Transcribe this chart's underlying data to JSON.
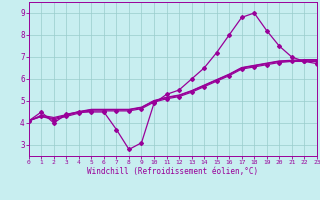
{
  "xlabel": "Windchill (Refroidissement éolien,°C)",
  "bg_color": "#c8eef0",
  "line_color": "#990099",
  "grid_color": "#99cccc",
  "xmin": 0,
  "xmax": 23,
  "ymin": 2.5,
  "ymax": 9.5,
  "yticks": [
    3,
    4,
    5,
    6,
    7,
    8,
    9
  ],
  "series1_x": [
    0,
    1,
    2,
    3,
    4,
    5,
    6,
    7,
    8,
    9,
    10,
    11,
    12,
    13,
    14,
    15,
    16,
    17,
    18,
    19,
    20,
    21,
    22,
    23
  ],
  "series1_y": [
    4.1,
    4.5,
    4.0,
    4.4,
    4.5,
    4.5,
    4.5,
    3.7,
    2.8,
    3.1,
    4.9,
    5.3,
    5.5,
    6.0,
    6.5,
    7.2,
    8.0,
    8.8,
    9.0,
    8.2,
    7.5,
    7.0,
    6.8,
    6.7
  ],
  "series2_x": [
    0,
    1,
    2,
    3,
    4,
    5,
    6,
    7,
    8,
    9,
    10,
    11,
    12,
    13,
    14,
    15,
    16,
    17,
    18,
    19,
    20,
    21,
    22,
    23
  ],
  "series2_y": [
    4.1,
    4.3,
    4.15,
    4.3,
    4.45,
    4.55,
    4.55,
    4.55,
    4.55,
    4.65,
    4.95,
    5.1,
    5.2,
    5.4,
    5.65,
    5.9,
    6.15,
    6.45,
    6.55,
    6.65,
    6.75,
    6.8,
    6.8,
    6.8
  ],
  "series3_x": [
    0,
    1,
    2,
    3,
    4,
    5,
    6,
    7,
    8,
    9,
    10,
    11,
    12,
    13,
    14,
    15,
    16,
    17,
    18,
    19,
    20,
    21,
    22,
    23
  ],
  "series3_y": [
    4.1,
    4.3,
    4.2,
    4.35,
    4.5,
    4.6,
    4.6,
    4.6,
    4.6,
    4.7,
    5.0,
    5.15,
    5.25,
    5.45,
    5.7,
    5.95,
    6.2,
    6.5,
    6.6,
    6.7,
    6.8,
    6.82,
    6.85,
    6.85
  ],
  "series4_x": [
    0,
    1,
    2,
    3,
    4,
    5,
    6,
    7,
    8,
    9,
    10,
    11,
    12,
    13,
    14,
    15,
    16,
    17,
    18,
    19,
    20,
    21,
    22,
    23
  ],
  "series4_y": [
    4.1,
    4.35,
    4.25,
    4.38,
    4.52,
    4.62,
    4.62,
    4.62,
    4.62,
    4.72,
    5.02,
    5.17,
    5.27,
    5.47,
    5.72,
    5.97,
    6.22,
    6.52,
    6.62,
    6.72,
    6.82,
    6.85,
    6.88,
    6.88
  ]
}
